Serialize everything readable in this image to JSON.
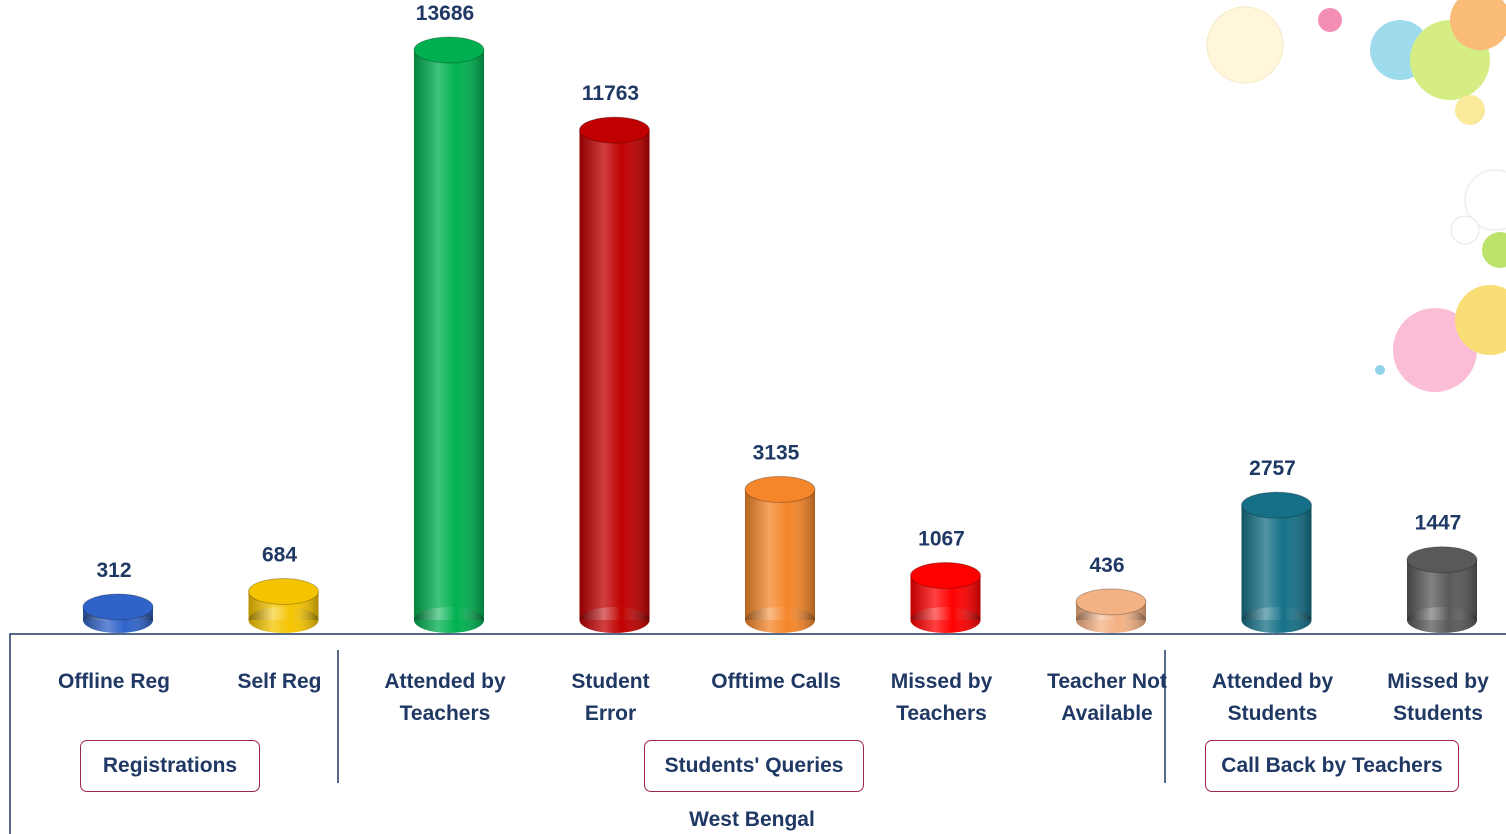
{
  "chart_data": {
    "type": "bar",
    "title": "West Bengal",
    "groups": [
      {
        "name": "Registrations",
        "categories": [
          "Offline Reg",
          "Self Reg"
        ],
        "values": [
          312,
          684
        ],
        "colors": [
          "#3063c8",
          "#f5c400"
        ]
      },
      {
        "name": "Students' Queries",
        "categories": [
          "Attended by\nTeachers",
          "Student\nError",
          "Offtime Calls",
          "Missed by\nTeachers",
          "Teacher Not\nAvailable"
        ],
        "values": [
          13686,
          11763,
          3135,
          1067,
          436
        ],
        "colors": [
          "#00b050",
          "#c00000",
          "#f5862a",
          "#ff0000",
          "#f4b183"
        ]
      },
      {
        "name": "Call Back by Teachers",
        "categories": [
          "Attended by\nStudents",
          "Missed by\nStudents"
        ],
        "values": [
          2757,
          1447
        ],
        "colors": [
          "#157087",
          "#595959"
        ]
      }
    ]
  }
}
